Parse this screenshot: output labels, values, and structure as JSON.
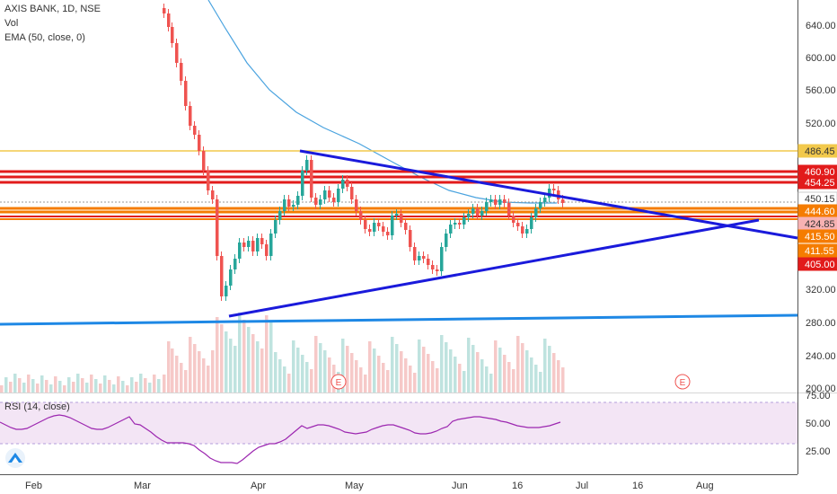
{
  "header": {
    "symbol_line": "AXIS BANK, 1D, NSE",
    "vol_label": "Vol",
    "ema_label": "EMA (50, close, 0)"
  },
  "rsi": {
    "label": "RSI (14, close)",
    "ticks": [
      "75.00",
      "50.00",
      "25.00"
    ]
  },
  "price_axis": {
    "ticks": [
      "640.00",
      "600.00",
      "560.00",
      "520.00",
      "320.00",
      "280.00",
      "240.00",
      "200.00"
    ]
  },
  "time_axis": {
    "ticks": [
      "Feb",
      "Mar",
      "Apr",
      "May",
      "Jun",
      "16",
      "Jul",
      "16",
      "Aug"
    ]
  },
  "levels": [
    {
      "label": "486.45",
      "color": "#f2c94c",
      "text_color": "#333333"
    },
    {
      "label": "460.90",
      "color": "#e21b1b",
      "text_color": "#ffffff"
    },
    {
      "label": "454.25",
      "color": "#e21b1b",
      "text_color": "#ffffff"
    },
    {
      "label": "450.15",
      "color": "#ffffff",
      "text_color": "#333333"
    },
    {
      "label": "444.60",
      "color": "#f57c00",
      "text_color": "#ffffff"
    },
    {
      "label": "424.85",
      "color": "#f7b2b2",
      "text_color": "#333333"
    },
    {
      "label": "415.50",
      "color": "#f57c00",
      "text_color": "#ffffff"
    },
    {
      "label": "411.55",
      "color": "#f57c00",
      "text_color": "#ffffff"
    },
    {
      "label": "405.00",
      "color": "#e21b1b",
      "text_color": "#ffffff"
    }
  ],
  "earnings_markers": [
    "E",
    "E"
  ],
  "colors": {
    "up": "#26a69a",
    "down": "#ef5350",
    "ema": "#4aa3df",
    "trendline": "#1a1adb",
    "support": "#1e88e5",
    "rsi_line": "#9c27b0",
    "rsi_band": "#f3e5f5"
  },
  "logo": "tradingview-logo-icon"
}
